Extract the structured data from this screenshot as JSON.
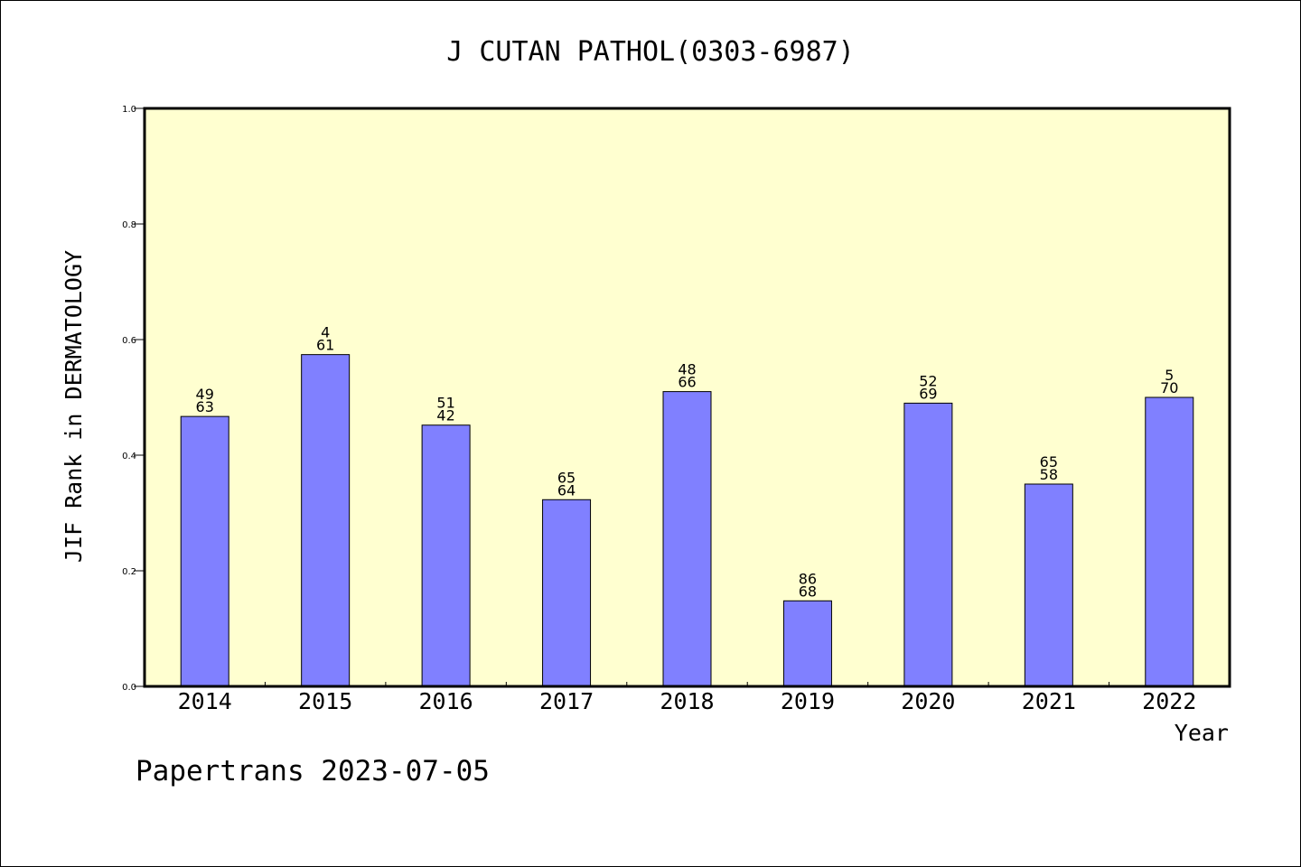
{
  "chart_data": {
    "type": "bar",
    "title": "J CUTAN PATHOL(0303-6987)",
    "xlabel": "Year",
    "ylabel": "JIF Rank in DERMATOLOGY",
    "ylim": [
      0,
      1.0
    ],
    "yticks": [
      "0.0",
      "0.2",
      "0.4",
      "0.6",
      "0.8",
      "1.0"
    ],
    "categories": [
      "2014",
      "2015",
      "2016",
      "2017",
      "2018",
      "2019",
      "2020",
      "2021",
      "2022"
    ],
    "values": [
      0.467,
      0.574,
      0.452,
      0.323,
      0.51,
      0.148,
      0.49,
      0.35,
      0.5
    ],
    "label_top": [
      "49",
      "4",
      "51",
      "65",
      "48",
      "86",
      "52",
      "65",
      "5"
    ],
    "label_bottom": [
      "63",
      "61",
      "42",
      "64",
      "66",
      "68",
      "69",
      "58",
      "70"
    ],
    "grid": false,
    "colors": {
      "plot_bg": "#ffffd0",
      "bar": "#8080ff",
      "axis": "#000000"
    }
  },
  "footer": {
    "watermark": "Papertrans 2023-07-05"
  }
}
